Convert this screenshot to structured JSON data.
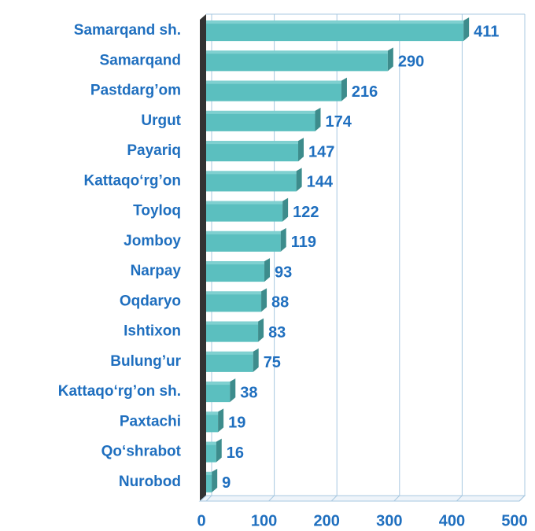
{
  "chart_data": {
    "type": "bar",
    "orientation": "horizontal",
    "categories": [
      "Samarqand sh.",
      "Samarqand",
      "Pastdarg’om",
      "Urgut",
      "Payariq",
      "Kattaqo‘rg’on ",
      "Toyloq",
      "Jomboy",
      "Narpay",
      "Oqdaryo",
      "Ishtixon",
      "Bulung’ur",
      "Kattaqo‘rg’on sh.",
      "Paxtachi",
      "Qo‘shrabot",
      "Nurobod"
    ],
    "values": [
      411,
      290,
      216,
      174,
      147,
      144,
      122,
      119,
      93,
      88,
      83,
      75,
      38,
      19,
      16,
      9
    ],
    "color": "#5bbfbf",
    "xlim": [
      0,
      500
    ],
    "xticks": [
      0,
      100,
      200,
      300,
      400,
      500
    ],
    "grid": true
  }
}
